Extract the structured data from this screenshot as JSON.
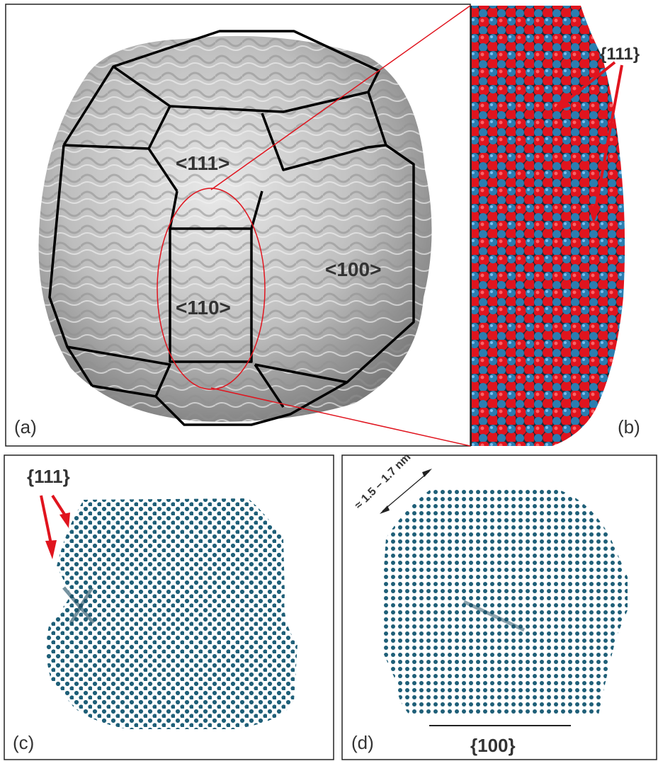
{
  "panel_a": {
    "label": "(a)",
    "facets": {
      "f111": "<111>",
      "f110": "<110>",
      "f100": "<100>"
    }
  },
  "panel_b": {
    "label": "(b)",
    "facet": "{111}"
  },
  "panel_c": {
    "label": "(c)",
    "facet": "{111}"
  },
  "panel_d": {
    "label": "(d)",
    "facet": "{100}",
    "dimension": "≈ 1.5 – 1.7 nm"
  },
  "colors": {
    "outline": "#000000",
    "highlight": "#e0141e",
    "atom_red": "#e0141e",
    "atom_blue": "#2b7db0",
    "dot_teal": "#1f5f78",
    "surface": "#c9c9c9"
  }
}
